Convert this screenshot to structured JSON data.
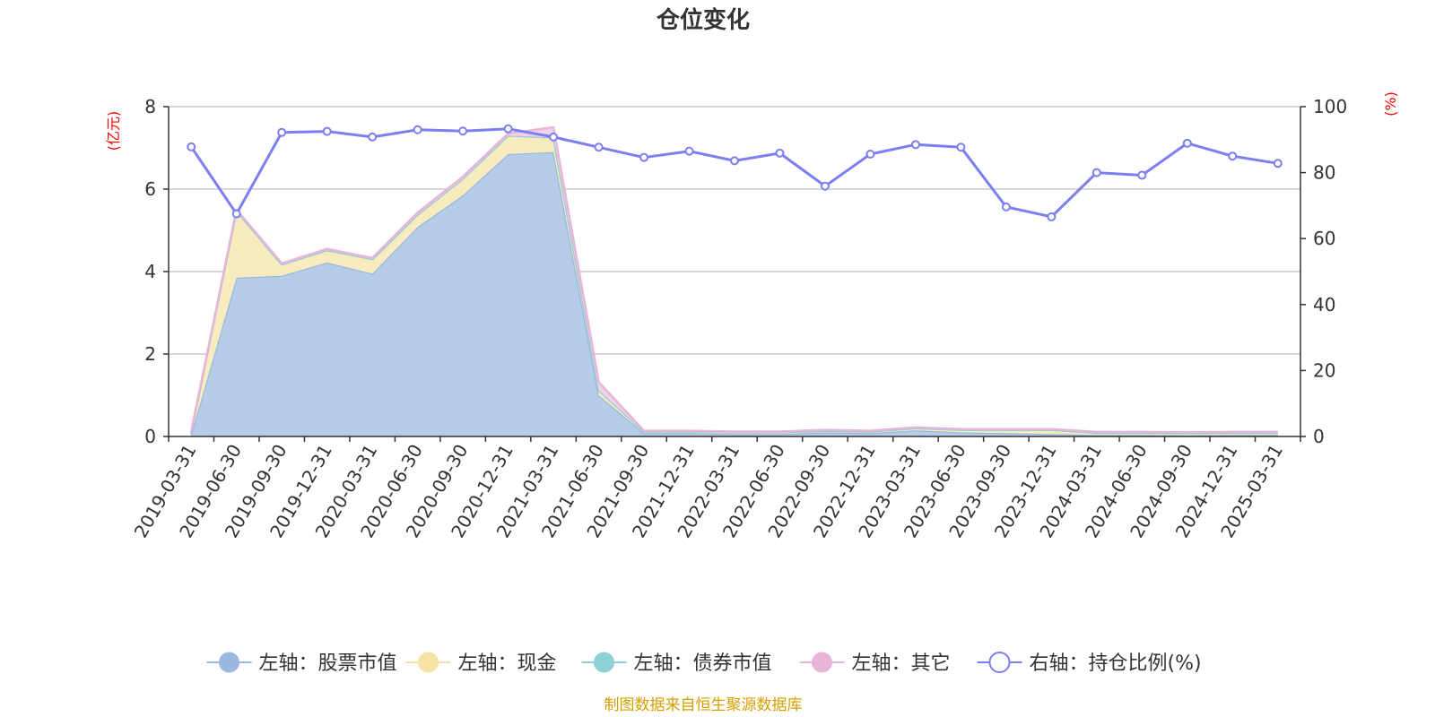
{
  "chart_data": {
    "type": "area",
    "title": "仓位变化",
    "left_axis": {
      "unit": "(亿元)",
      "ylim": [
        0,
        8
      ],
      "ticks": [
        "0",
        "2",
        "4",
        "6",
        "8"
      ]
    },
    "right_axis": {
      "unit": "(%)",
      "ylim": [
        0,
        100
      ],
      "ticks": [
        "0",
        "20",
        "40",
        "60",
        "80",
        "100"
      ]
    },
    "categories": [
      "2019-03-31",
      "2019-06-30",
      "2019-09-30",
      "2019-12-31",
      "2020-03-31",
      "2020-06-30",
      "2020-09-30",
      "2020-12-31",
      "2021-03-31",
      "2021-06-30",
      "2021-09-30",
      "2021-12-31",
      "2022-03-31",
      "2022-06-30",
      "2022-09-30",
      "2022-12-31",
      "2023-03-31",
      "2023-06-30",
      "2023-09-30",
      "2023-12-31",
      "2024-03-31",
      "2024-06-30",
      "2024-09-30",
      "2024-12-31",
      "2025-03-31"
    ],
    "stacked_series": [
      {
        "name": "左轴：股票市值",
        "color": "#9ab8e0",
        "fill": "#b6cdea",
        "values": [
          0.05,
          3.85,
          3.9,
          4.22,
          3.95,
          5.08,
          5.85,
          6.85,
          6.9,
          1.0,
          0.08,
          0.08,
          0.06,
          0.06,
          0.1,
          0.08,
          0.15,
          0.1,
          0.08,
          0.06,
          0.04,
          0.04,
          0.03,
          0.04,
          0.04
        ]
      },
      {
        "name": "左轴：现金",
        "color": "#f6e3a4",
        "fill": "#f8ebbd",
        "values": [
          0.05,
          1.62,
          0.27,
          0.3,
          0.35,
          0.3,
          0.4,
          0.45,
          0.35,
          0.12,
          0.04,
          0.04,
          0.04,
          0.04,
          0.04,
          0.04,
          0.05,
          0.06,
          0.08,
          0.1,
          0.05,
          0.05,
          0.05,
          0.05,
          0.05
        ]
      },
      {
        "name": "左轴：债券市值",
        "color": "#8dd0d6",
        "fill": "#bfe6ea",
        "values": [
          0,
          0,
          0,
          0,
          0,
          0,
          0,
          0,
          0,
          0,
          0,
          0,
          0,
          0,
          0,
          0,
          0,
          0,
          0,
          0,
          0,
          0,
          0,
          0,
          0
        ]
      },
      {
        "name": "左轴：其它",
        "color": "#e8b4d8",
        "fill": "#f2d2e8",
        "values": [
          0.02,
          0.03,
          0.03,
          0.03,
          0.03,
          0.05,
          0.05,
          0.05,
          0.25,
          0.2,
          0.02,
          0.02,
          0.02,
          0.02,
          0.02,
          0.02,
          0.02,
          0.02,
          0.02,
          0.02,
          0.02,
          0.02,
          0.02,
          0.02,
          0.02
        ]
      }
    ],
    "line_series": {
      "name": "右轴：持仓比例(%)",
      "color": "#7b7ff0",
      "values": [
        87.8,
        67.5,
        92.2,
        92.5,
        90.8,
        93.0,
        92.6,
        93.3,
        90.8,
        87.7,
        84.6,
        86.5,
        83.6,
        85.9,
        75.9,
        85.6,
        88.5,
        87.7,
        69.6,
        66.6,
        80.0,
        79.2,
        88.9,
        85.0,
        82.8
      ]
    },
    "grid": true,
    "legend_position": "bottom"
  },
  "source_note": "制图数据来自恒生聚源数据库"
}
